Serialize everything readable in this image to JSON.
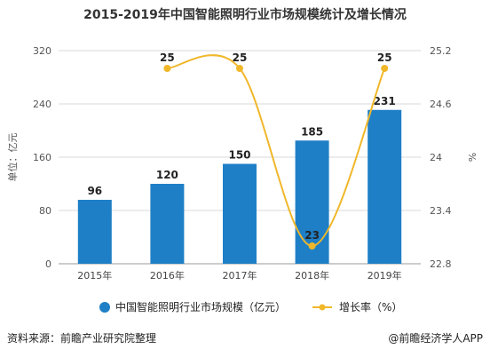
{
  "title": "2015-2019年中国智能照明行业市场规模统计及增长情况",
  "footer": {
    "source": "资料来源：前瞻产业研究院整理",
    "credit": "@前瞻经济学人APP"
  },
  "colors": {
    "bar": "#1e7fc6",
    "line": "#f0b72a",
    "grid": "#d9d9d9",
    "axis": "#999999"
  },
  "chart_data": {
    "type": "bar",
    "categories": [
      "2015年",
      "2016年",
      "2017年",
      "2018年",
      "2019年"
    ],
    "series": [
      {
        "name": "中国智能照明行业市场规模（亿元）",
        "type": "bar",
        "axis": "left",
        "values": [
          96,
          120,
          150,
          185,
          231
        ]
      },
      {
        "name": "增长率（%）",
        "type": "line",
        "axis": "right",
        "values": [
          null,
          25,
          25,
          23,
          25
        ]
      }
    ],
    "ylabel_left": "单位：亿元",
    "ylabel_right": "%",
    "ylim_left": [
      0,
      320
    ],
    "yticks_left": [
      "0",
      "80",
      "160",
      "240",
      "320"
    ],
    "ylim_right": [
      22.8,
      25.2
    ],
    "yticks_right": [
      "22.8",
      "23.4",
      "24",
      "24.6",
      "25.2"
    ],
    "grid": true,
    "legend": "bottom"
  }
}
